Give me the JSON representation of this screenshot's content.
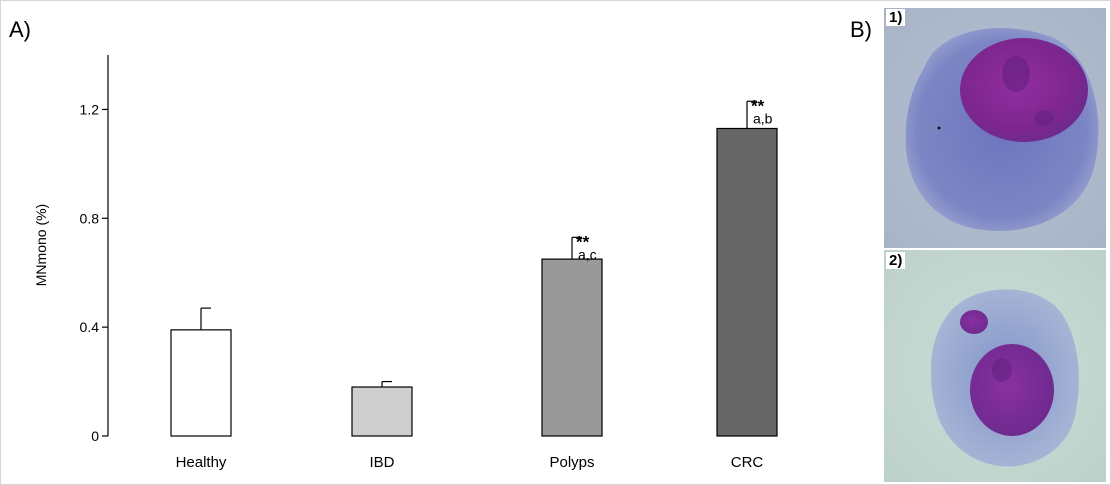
{
  "panel_a_label": "A)",
  "panel_b_label": "B)",
  "micro_labels": [
    "1)",
    "2)"
  ],
  "colors": {
    "axis": "#000000",
    "bar_fills": [
      "#ffffff",
      "#cfcfcf",
      "#999999",
      "#666666"
    ],
    "cell1_background": "#a9b5cc",
    "cell1_cytoplasm": "#6a70b8",
    "cell1_nucleus": "#8a2a9a",
    "cell2_background": "#c5d6d0",
    "cell2_cytoplasm": "#8fa0cc",
    "cell2_nucleus": "#7a2e96"
  },
  "chart_data": {
    "type": "bar",
    "categories": [
      "Healthy",
      "IBD",
      "Polyps",
      "CRC"
    ],
    "values": [
      0.39,
      0.18,
      0.65,
      1.13
    ],
    "errors": [
      0.08,
      0.02,
      0.08,
      0.1
    ],
    "significance": [
      "",
      "",
      "**",
      "**"
    ],
    "letters": [
      "",
      "",
      "a,c",
      "a,b"
    ],
    "ylabel": "MNmono (%)",
    "xlabel": "",
    "ylim": [
      0,
      1.4
    ],
    "yticks": [
      0,
      0.4,
      0.8,
      1.2
    ],
    "ytick_labels": [
      "0",
      "0.4",
      "0.8",
      "1.2"
    ],
    "grid": false
  }
}
